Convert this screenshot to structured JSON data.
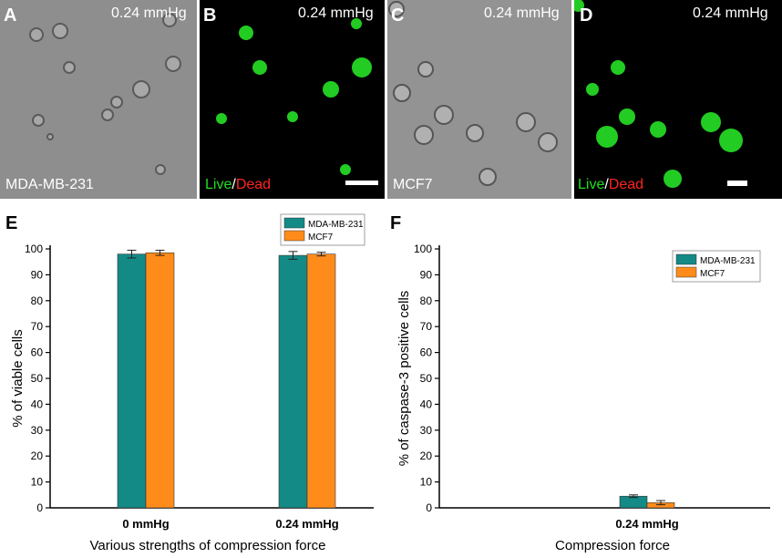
{
  "micrographs": [
    {
      "label": "A",
      "pressure": "0.24 mmHg",
      "caption": "MDA-MB-231",
      "kind": "phase"
    },
    {
      "label": "B",
      "pressure": "0.24 mmHg",
      "caption_live": "Live",
      "caption_sep": "/",
      "caption_dead": "Dead",
      "kind": "fluor"
    },
    {
      "label": "C",
      "pressure": "0.24 mmHg",
      "caption": "MCF7",
      "kind": "phase"
    },
    {
      "label": "D",
      "pressure": "0.24 mmHg",
      "caption_live": "Live",
      "caption_sep": "/",
      "caption_dead": "Dead",
      "kind": "fluor"
    }
  ],
  "colors": {
    "mda": "#138a86",
    "mcf7": "#ff8c1a",
    "live": "#22dd22",
    "dead": "#ff2222"
  },
  "chart_data": [
    {
      "panel": "E",
      "type": "bar",
      "categories": [
        "0 mmHg",
        "0.24 mmHg"
      ],
      "series": [
        {
          "name": "MDA-MB-231",
          "values": [
            98,
            97.5
          ],
          "errors": [
            1.5,
            1.5
          ]
        },
        {
          "name": "MCF7",
          "values": [
            98.5,
            98
          ],
          "errors": [
            1,
            0.7
          ]
        }
      ],
      "xlabel": "Various strengths of compression force",
      "ylabel": "% of viable cells",
      "ylim": [
        0,
        100
      ],
      "yticks": [
        0,
        10,
        20,
        30,
        40,
        50,
        60,
        70,
        80,
        90,
        100
      ],
      "legend": "top-right",
      "grid": false
    },
    {
      "panel": "F",
      "type": "bar",
      "categories": [
        "0.24 mmHg"
      ],
      "series": [
        {
          "name": "MDA-MB-231",
          "values": [
            4.5
          ],
          "errors": [
            0.5
          ]
        },
        {
          "name": "MCF7",
          "values": [
            2
          ],
          "errors": [
            0.8
          ]
        }
      ],
      "xlabel": "Compression force",
      "ylabel": "% of caspase-3 positive cells",
      "ylim": [
        0,
        100
      ],
      "yticks": [
        0,
        10,
        20,
        30,
        40,
        50,
        60,
        70,
        80,
        90,
        100
      ],
      "legend": "top-right",
      "grid": false
    }
  ]
}
